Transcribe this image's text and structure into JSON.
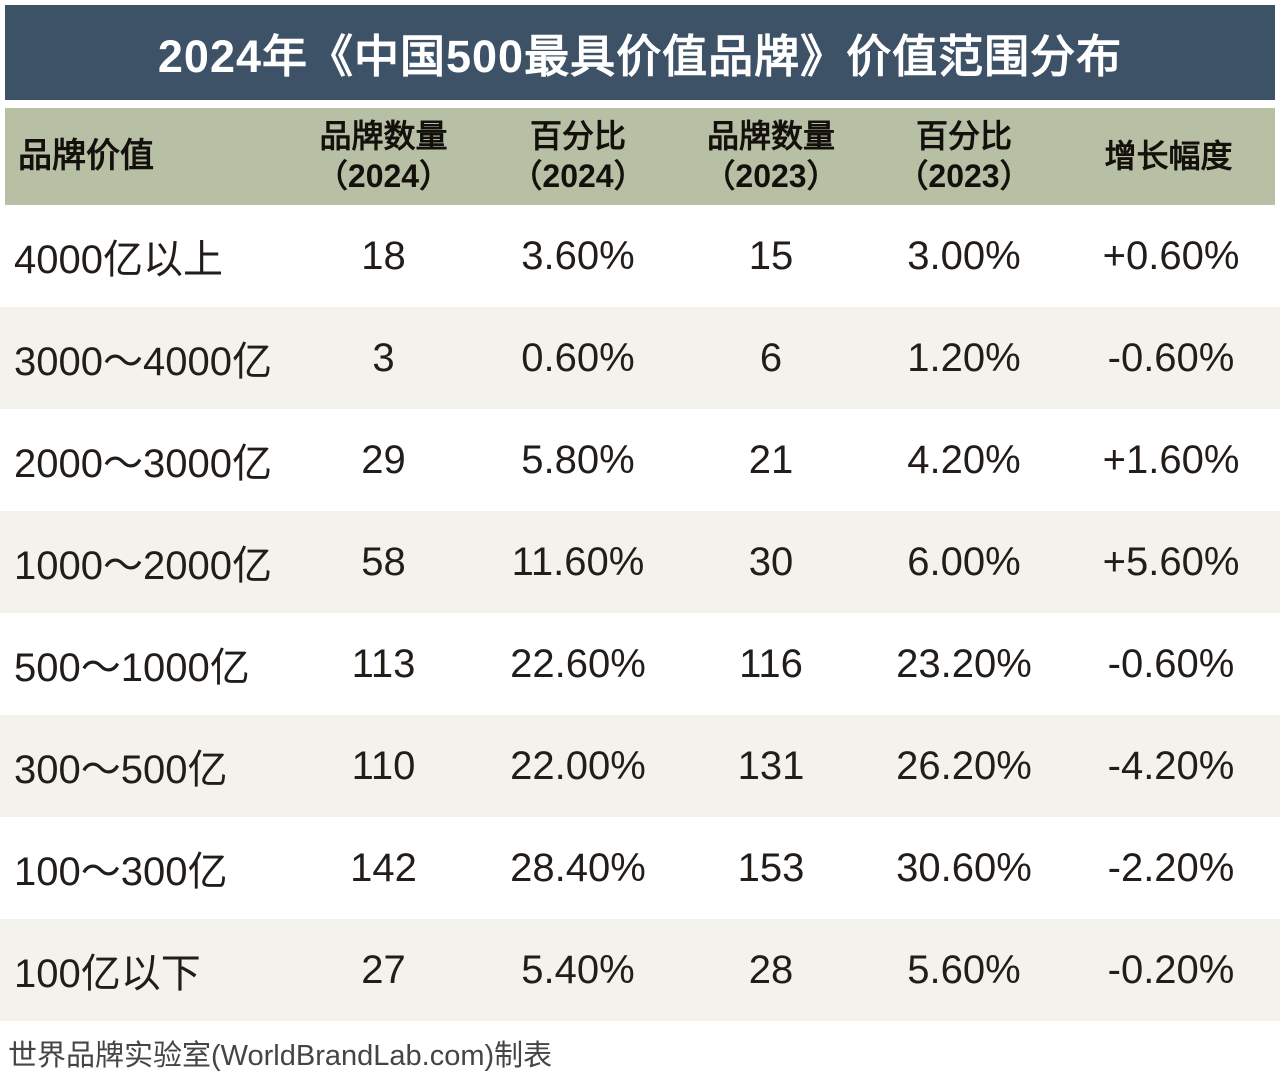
{
  "title": "2024年《中国500最具价值品牌》价值范围分布",
  "table": {
    "columns": [
      {
        "label": "品牌价值",
        "sub": ""
      },
      {
        "label": "品牌数量",
        "sub": "（2024）"
      },
      {
        "label": "百分比",
        "sub": "（2024）"
      },
      {
        "label": "品牌数量",
        "sub": "（2023）"
      },
      {
        "label": "百分比",
        "sub": "（2023）"
      },
      {
        "label": "增长幅度",
        "sub": ""
      }
    ],
    "rows": [
      [
        "4000亿以上",
        "18",
        "3.60%",
        "15",
        "3.00%",
        "+0.60%"
      ],
      [
        "3000～4000亿",
        "3",
        "0.60%",
        "6",
        "1.20%",
        "-0.60%"
      ],
      [
        "2000～3000亿",
        "29",
        "5.80%",
        "21",
        "4.20%",
        "+1.60%"
      ],
      [
        "1000～2000亿",
        "58",
        "11.60%",
        "30",
        "6.00%",
        "+5.60%"
      ],
      [
        "500～1000亿",
        "113",
        "22.60%",
        "116",
        "23.20%",
        "-0.60%"
      ],
      [
        "300～500亿",
        "110",
        "22.00%",
        "131",
        "26.20%",
        "-4.20%"
      ],
      [
        "100～300亿",
        "142",
        "28.40%",
        "153",
        "30.60%",
        "-2.20%"
      ],
      [
        "100亿以下",
        "27",
        "5.40%",
        "28",
        "5.60%",
        "-0.20%"
      ]
    ]
  },
  "footer": "世界品牌实验室(WorldBrandLab.com)制表",
  "colors": {
    "title_bar": "#3d5167",
    "title_text": "#ffffff",
    "header_band": "#b7c0a5",
    "header_text": "#14110d",
    "row_alt": "#f3f2ed",
    "body_text": "#221d19",
    "footer_text": "#454545"
  },
  "chart_data": {
    "type": "table",
    "title": "2024年《中国500最具价值品牌》价值范围分布",
    "categories": [
      "4000亿以上",
      "3000～4000亿",
      "2000～3000亿",
      "1000～2000亿",
      "500～1000亿",
      "300～500亿",
      "100～300亿",
      "100亿以下"
    ],
    "series": [
      {
        "name": "品牌数量（2024）",
        "values": [
          18,
          3,
          29,
          58,
          113,
          110,
          142,
          27
        ]
      },
      {
        "name": "百分比（2024）",
        "values": [
          "3.60%",
          "0.60%",
          "5.80%",
          "11.60%",
          "22.60%",
          "22.00%",
          "28.40%",
          "5.40%"
        ]
      },
      {
        "name": "品牌数量（2023）",
        "values": [
          15,
          6,
          21,
          30,
          116,
          131,
          153,
          28
        ]
      },
      {
        "name": "百分比（2023）",
        "values": [
          "3.00%",
          "1.20%",
          "4.20%",
          "6.00%",
          "23.20%",
          "26.20%",
          "30.60%",
          "5.60%"
        ]
      },
      {
        "name": "增长幅度",
        "values": [
          "+0.60%",
          "-0.60%",
          "+1.60%",
          "+5.60%",
          "-0.60%",
          "-4.20%",
          "-2.20%",
          "-0.20%"
        ]
      }
    ],
    "footnote": "世界品牌实验室(WorldBrandLab.com)制表",
    "layout": {
      "header_background": "#b7c0a5",
      "title_background": "#3d5167",
      "row_alternation": "white/#f3f2ed",
      "grid": false
    }
  }
}
